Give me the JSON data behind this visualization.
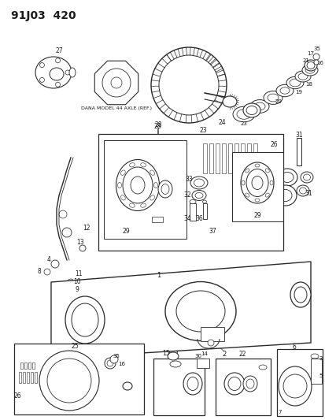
{
  "title": "91J03  420",
  "bg_color": "#ffffff",
  "lc": "#2a2a2a",
  "tc": "#1a1a1a",
  "dana_label": "DANA MODEL 44 AXLE (REF.)",
  "figsize": [
    4.14,
    5.33
  ],
  "dpi": 100,
  "title_fs": 10,
  "label_fs": 5.5
}
